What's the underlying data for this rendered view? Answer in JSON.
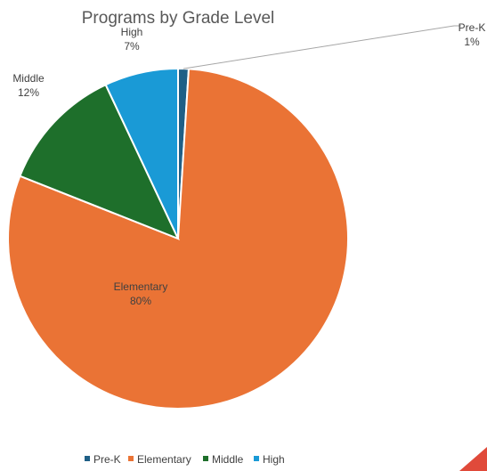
{
  "chart_data": {
    "type": "pie",
    "title": "Programs by Grade Level",
    "slices": [
      {
        "label": "Pre-K",
        "value": 1,
        "pct_label": "1%",
        "color": "#1f5f86"
      },
      {
        "label": "Elementary",
        "value": 80,
        "pct_label": "80%",
        "color": "#ea7335"
      },
      {
        "label": "Middle",
        "value": 12,
        "pct_label": "12%",
        "color": "#1e6f2b"
      },
      {
        "label": "High",
        "value": 7,
        "pct_label": "7%",
        "color": "#1a9ad6"
      }
    ],
    "legend_position": "bottom",
    "data_labels": "category and percentage"
  }
}
